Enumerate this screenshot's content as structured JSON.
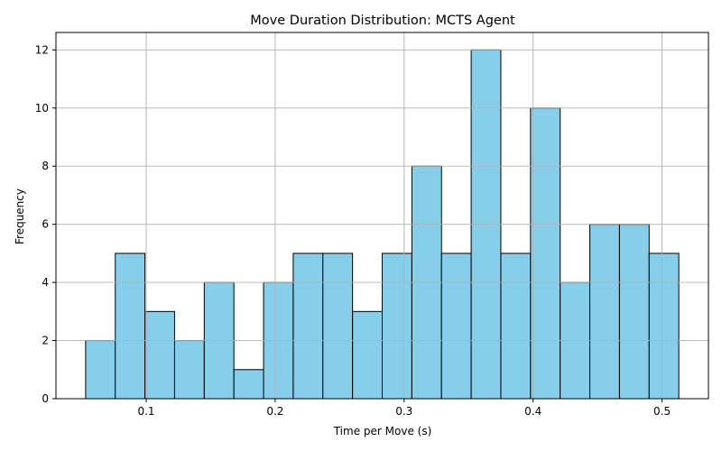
{
  "chart_data": {
    "type": "bar",
    "title": "Move Duration Distribution: MCTS Agent",
    "xlabel": "Time per Move (s)",
    "ylabel": "Frequency",
    "bin_edges": [
      0.053,
      0.076,
      0.099,
      0.122,
      0.145,
      0.168,
      0.191,
      0.214,
      0.237,
      0.26,
      0.283,
      0.306,
      0.329,
      0.352,
      0.375,
      0.398,
      0.421,
      0.444,
      0.467,
      0.49,
      0.513
    ],
    "values": [
      2,
      5,
      3,
      2,
      4,
      1,
      4,
      5,
      5,
      3,
      5,
      8,
      5,
      12,
      5,
      10,
      4,
      6,
      6,
      5
    ],
    "xlim": [
      0.03,
      0.536
    ],
    "ylim": [
      0,
      12.6
    ],
    "x_ticks": [
      0.1,
      0.2,
      0.3,
      0.4,
      0.5
    ],
    "x_tick_labels": [
      "0.1",
      "0.2",
      "0.3",
      "0.4",
      "0.5"
    ],
    "y_ticks": [
      0,
      2,
      4,
      6,
      8,
      10,
      12
    ],
    "y_tick_labels": [
      "0",
      "2",
      "4",
      "6",
      "8",
      "10",
      "12"
    ],
    "grid": true,
    "bar_color": "#87ceeb",
    "edge_color": "#000000",
    "grid_color": "#b0b0b0"
  }
}
